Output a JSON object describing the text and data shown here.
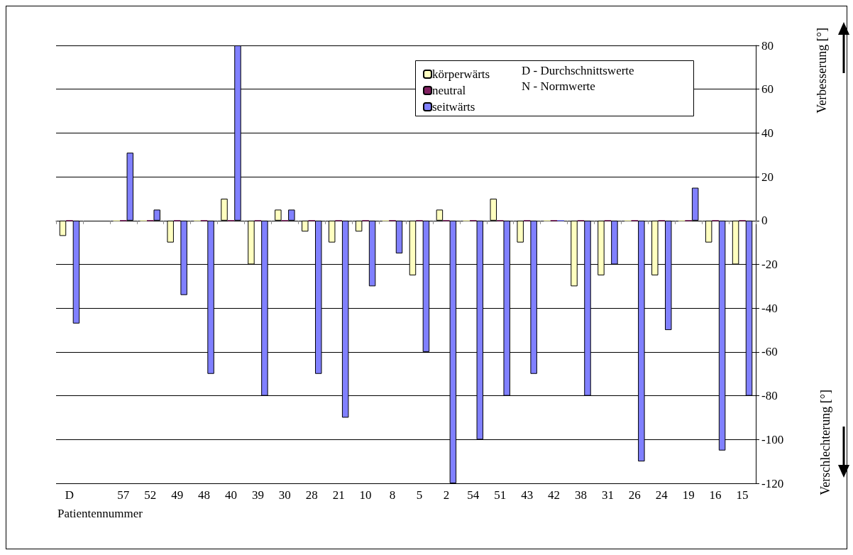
{
  "chart_data": {
    "type": "bar",
    "xlabel": "Patientennummer",
    "ylabel": "Verbesserung [°]",
    "y2label": "Verschlechterung [°]",
    "categories": [
      "D",
      null,
      "57",
      "52",
      "49",
      "48",
      "40",
      "39",
      "30",
      "28",
      "21",
      "10",
      "8",
      "5",
      "2",
      "54",
      "51",
      "43",
      "42",
      "38",
      "31",
      "26",
      "24",
      "19",
      "16",
      "15"
    ],
    "series": [
      {
        "name": "körperwärts",
        "color": "#ffffc0",
        "values": [
          -7,
          null,
          0,
          0,
          -10,
          0,
          10,
          -20,
          5,
          -5,
          -10,
          -5,
          0,
          -25,
          5,
          0,
          10,
          -10,
          0,
          -30,
          -25,
          0,
          -25,
          0,
          -10,
          -20
        ]
      },
      {
        "name": "neutral",
        "color": "#802060",
        "values": [
          0,
          null,
          0,
          0,
          0,
          0,
          0,
          0,
          0,
          0,
          0,
          0,
          0,
          0,
          0,
          0,
          0,
          0,
          0,
          0,
          0,
          0,
          0,
          0,
          0,
          0
        ]
      },
      {
        "name": "seitwärts",
        "color": "#8080ff",
        "values": [
          -47,
          null,
          31,
          5,
          -34,
          -70,
          80,
          -80,
          5,
          -70,
          -90,
          -30,
          -15,
          -60,
          -120,
          -100,
          -80,
          -70,
          0,
          -80,
          -20,
          -110,
          -50,
          15,
          -105,
          -80
        ]
      }
    ],
    "annotations": [
      "D - Durchschnittswerte",
      "N - Normwerte"
    ],
    "ylim": [
      -120,
      80
    ],
    "yticks": [
      -120,
      -100,
      -80,
      -60,
      -40,
      -20,
      0,
      20,
      40,
      60,
      80
    ],
    "grid": "y",
    "legend": "top right"
  }
}
